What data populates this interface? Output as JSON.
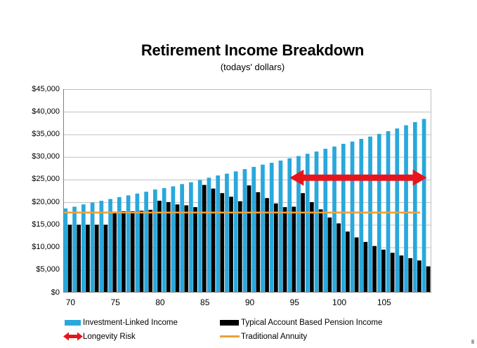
{
  "chart": {
    "title": "Retirement Income Breakdown",
    "subtitle": "(todays' dollars)"
  },
  "legend": {
    "investment_linked": "Investment-Linked Income",
    "pension": "Typical Account Based Pension Income",
    "longevity": "Longevity Risk",
    "annuity": "Traditional Annuity"
  },
  "chart_data": {
    "type": "bar",
    "title": "Retirement Income Breakdown",
    "subtitle": "(todays' dollars)",
    "x": [
      70,
      71,
      72,
      73,
      74,
      75,
      76,
      77,
      78,
      79,
      80,
      81,
      82,
      83,
      84,
      85,
      86,
      87,
      88,
      89,
      90,
      91,
      92,
      93,
      94,
      95,
      96,
      97,
      98,
      99,
      100,
      101,
      102,
      103,
      104,
      105,
      106,
      107,
      108,
      109,
      110
    ],
    "x_tick_values": [
      70,
      75,
      80,
      85,
      90,
      95,
      100,
      105
    ],
    "x_tick_labels": [
      "70",
      "75",
      "80",
      "85",
      "90",
      "95",
      "100",
      "105"
    ],
    "ylim": [
      0,
      45000
    ],
    "grid": true,
    "legend_position": "bottom",
    "y_ticks": [
      {
        "value": 0,
        "label": "$0"
      },
      {
        "value": 5000,
        "label": "$5,000"
      },
      {
        "value": 10000,
        "label": "$10,000"
      },
      {
        "value": 15000,
        "label": "$15,000"
      },
      {
        "value": 20000,
        "label": "$20,000"
      },
      {
        "value": 25000,
        "label": "$25,000"
      },
      {
        "value": 30000,
        "label": "$30,000"
      },
      {
        "value": 35000,
        "label": "$35,000"
      },
      {
        "value": 40000,
        "label": "$40,000"
      },
      {
        "value": 45000,
        "label": "$45,000"
      }
    ],
    "series": [
      {
        "name": "Investment-Linked Income",
        "type": "bar",
        "color": "#29A8DC",
        "values": [
          18600,
          19000,
          19500,
          19900,
          20300,
          20700,
          21100,
          21500,
          21900,
          22300,
          22800,
          23100,
          23500,
          24000,
          24400,
          24900,
          25400,
          25900,
          26300,
          26800,
          27300,
          27800,
          28300,
          28700,
          29200,
          29700,
          30200,
          30700,
          31200,
          31800,
          32300,
          32900,
          33400,
          34000,
          34500,
          35100,
          35700,
          36300,
          37000,
          37700,
          38400
        ]
      },
      {
        "name": "Typical Account Based Pension Income",
        "type": "bar",
        "color": "#000000",
        "values": [
          15000,
          15000,
          15000,
          15000,
          15000,
          17900,
          18000,
          18000,
          18100,
          18300,
          20300,
          20000,
          19500,
          19300,
          18900,
          23800,
          23000,
          22000,
          21200,
          20200,
          23700,
          22200,
          20900,
          19700,
          18900,
          19000,
          22000,
          20000,
          18400,
          16600,
          15300,
          13500,
          12200,
          11200,
          10300,
          9500,
          8800,
          8200,
          7600,
          7100,
          5800
        ]
      },
      {
        "name": "Traditional Annuity",
        "type": "line",
        "color": "#E8A23C",
        "value": 17700,
        "age_from": 70,
        "age_to": 109
      },
      {
        "name": "Longevity Risk",
        "type": "double_arrow",
        "color": "#E8141C",
        "value": 25400,
        "age_from": 95,
        "age_to": 110
      }
    ],
    "axis_colors": {
      "grid": "#BFBFBF",
      "axis": "#808080"
    }
  }
}
